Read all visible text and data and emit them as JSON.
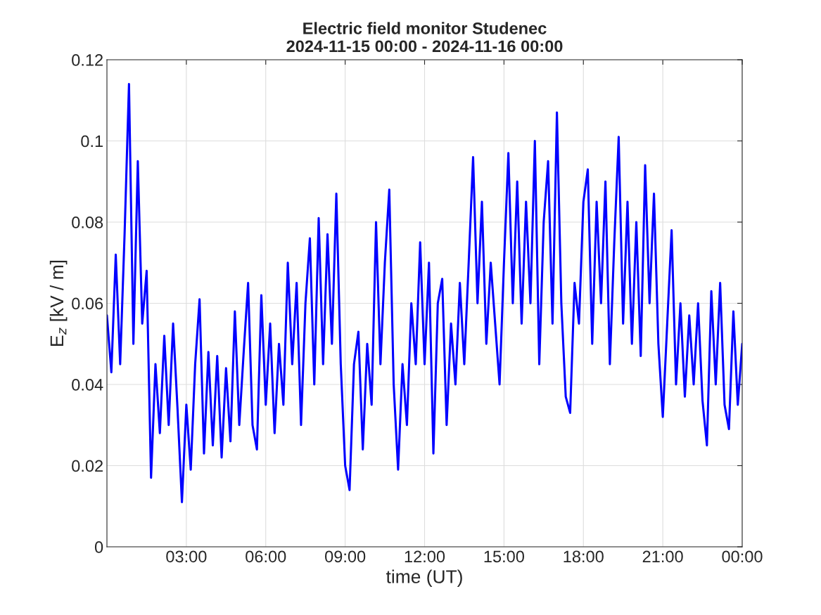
{
  "chart_data": {
    "type": "line",
    "title": "Electric field monitor Studenec\n2024-11-15 00:00 - 2024-11-16 00:00",
    "xlabel": "time (UT)",
    "ylabel": "E$_{z}$ [kV / m]",
    "x": [
      "2024-11-15T00:00",
      "2024-11-15T00:10",
      "2024-11-15T00:20",
      "2024-11-15T00:30",
      "2024-11-15T00:40",
      "2024-11-15T00:50",
      "2024-11-15T01:00",
      "2024-11-15T01:10",
      "2024-11-15T01:20",
      "2024-11-15T01:30",
      "2024-11-15T01:40",
      "2024-11-15T01:50",
      "2024-11-15T02:00",
      "2024-11-15T02:10",
      "2024-11-15T02:20",
      "2024-11-15T02:30",
      "2024-11-15T02:40",
      "2024-11-15T02:50",
      "2024-11-15T03:00",
      "2024-11-15T03:10",
      "2024-11-15T03:20",
      "2024-11-15T03:30",
      "2024-11-15T03:40",
      "2024-11-15T03:50",
      "2024-11-15T04:00",
      "2024-11-15T04:10",
      "2024-11-15T04:20",
      "2024-11-15T04:30",
      "2024-11-15T04:40",
      "2024-11-15T04:50",
      "2024-11-15T05:00",
      "2024-11-15T05:10",
      "2024-11-15T05:20",
      "2024-11-15T05:30",
      "2024-11-15T05:40",
      "2024-11-15T05:50",
      "2024-11-15T06:00",
      "2024-11-15T06:10",
      "2024-11-15T06:20",
      "2024-11-15T06:30",
      "2024-11-15T06:40",
      "2024-11-15T06:50",
      "2024-11-15T07:00",
      "2024-11-15T07:10",
      "2024-11-15T07:20",
      "2024-11-15T07:30",
      "2024-11-15T07:40",
      "2024-11-15T07:50",
      "2024-11-15T08:00",
      "2024-11-15T08:10",
      "2024-11-15T08:20",
      "2024-11-15T08:30",
      "2024-11-15T08:40",
      "2024-11-15T08:50",
      "2024-11-15T09:00",
      "2024-11-15T09:10",
      "2024-11-15T09:20",
      "2024-11-15T09:30",
      "2024-11-15T09:40",
      "2024-11-15T09:50",
      "2024-11-15T10:00",
      "2024-11-15T10:10",
      "2024-11-15T10:20",
      "2024-11-15T10:30",
      "2024-11-15T10:40",
      "2024-11-15T10:50",
      "2024-11-15T11:00",
      "2024-11-15T11:10",
      "2024-11-15T11:20",
      "2024-11-15T11:30",
      "2024-11-15T11:40",
      "2024-11-15T11:50",
      "2024-11-15T12:00",
      "2024-11-15T12:10",
      "2024-11-15T12:20",
      "2024-11-15T12:30",
      "2024-11-15T12:40",
      "2024-11-15T12:50",
      "2024-11-15T13:00",
      "2024-11-15T13:10",
      "2024-11-15T13:20",
      "2024-11-15T13:30",
      "2024-11-15T13:40",
      "2024-11-15T13:50",
      "2024-11-15T14:00",
      "2024-11-15T14:10",
      "2024-11-15T14:20",
      "2024-11-15T14:30",
      "2024-11-15T14:40",
      "2024-11-15T14:50",
      "2024-11-15T15:00",
      "2024-11-15T15:10",
      "2024-11-15T15:20",
      "2024-11-15T15:30",
      "2024-11-15T15:40",
      "2024-11-15T15:50",
      "2024-11-15T16:00",
      "2024-11-15T16:10",
      "2024-11-15T16:20",
      "2024-11-15T16:30",
      "2024-11-15T16:40",
      "2024-11-15T16:50",
      "2024-11-15T17:00",
      "2024-11-15T17:10",
      "2024-11-15T17:20",
      "2024-11-15T17:30",
      "2024-11-15T17:40",
      "2024-11-15T17:50",
      "2024-11-15T18:00",
      "2024-11-15T18:10",
      "2024-11-15T18:20",
      "2024-11-15T18:30",
      "2024-11-15T18:40",
      "2024-11-15T18:50",
      "2024-11-15T19:00",
      "2024-11-15T19:10",
      "2024-11-15T19:20",
      "2024-11-15T19:30",
      "2024-11-15T19:40",
      "2024-11-15T19:50",
      "2024-11-15T20:00",
      "2024-11-15T20:10",
      "2024-11-15T20:20",
      "2024-11-15T20:30",
      "2024-11-15T20:40",
      "2024-11-15T20:50",
      "2024-11-15T21:00",
      "2024-11-15T21:10",
      "2024-11-15T21:20",
      "2024-11-15T21:30",
      "2024-11-15T21:40",
      "2024-11-15T21:50",
      "2024-11-15T22:00",
      "2024-11-15T22:10",
      "2024-11-15T22:20",
      "2024-11-15T22:30",
      "2024-11-15T22:40",
      "2024-11-15T22:50",
      "2024-11-15T23:00",
      "2024-11-15T23:10",
      "2024-11-15T23:20",
      "2024-11-15T23:30",
      "2024-11-15T23:40",
      "2024-11-15T23:50",
      "2024-11-16T00:00"
    ],
    "series": [
      {
        "color": "#0000ff",
        "values": [
          0.057,
          0.043,
          0.072,
          0.045,
          0.077,
          0.114,
          0.05,
          0.095,
          0.055,
          0.068,
          0.017,
          0.045,
          0.028,
          0.052,
          0.03,
          0.055,
          0.034,
          0.011,
          0.035,
          0.019,
          0.045,
          0.061,
          0.023,
          0.048,
          0.025,
          0.047,
          0.022,
          0.044,
          0.026,
          0.058,
          0.03,
          0.048,
          0.065,
          0.03,
          0.024,
          0.062,
          0.035,
          0.055,
          0.028,
          0.05,
          0.035,
          0.07,
          0.045,
          0.065,
          0.03,
          0.06,
          0.076,
          0.04,
          0.081,
          0.045,
          0.077,
          0.05,
          0.087,
          0.045,
          0.02,
          0.014,
          0.045,
          0.053,
          0.024,
          0.05,
          0.035,
          0.08,
          0.045,
          0.07,
          0.088,
          0.04,
          0.019,
          0.045,
          0.03,
          0.06,
          0.045,
          0.075,
          0.045,
          0.07,
          0.023,
          0.06,
          0.066,
          0.03,
          0.055,
          0.04,
          0.065,
          0.045,
          0.07,
          0.096,
          0.06,
          0.085,
          0.05,
          0.07,
          0.055,
          0.04,
          0.07,
          0.097,
          0.06,
          0.09,
          0.055,
          0.085,
          0.06,
          0.1,
          0.045,
          0.08,
          0.095,
          0.055,
          0.107,
          0.06,
          0.037,
          0.033,
          0.065,
          0.055,
          0.085,
          0.093,
          0.05,
          0.085,
          0.06,
          0.09,
          0.045,
          0.075,
          0.101,
          0.055,
          0.085,
          0.05,
          0.08,
          0.047,
          0.094,
          0.06,
          0.087,
          0.05,
          0.032,
          0.055,
          0.078,
          0.04,
          0.06,
          0.037,
          0.057,
          0.04,
          0.06,
          0.036,
          0.025,
          0.063,
          0.04,
          0.065,
          0.035,
          0.029,
          0.058,
          0.035,
          0.05
        ]
      }
    ],
    "xlim": [
      "2024-11-15T00:00",
      "2024-11-16T00:00"
    ],
    "xticks": [
      {
        "value": "2024-11-15T03:00",
        "label": "03:00"
      },
      {
        "value": "2024-11-15T06:00",
        "label": "06:00"
      },
      {
        "value": "2024-11-15T09:00",
        "label": "09:00"
      },
      {
        "value": "2024-11-15T12:00",
        "label": "12:00"
      },
      {
        "value": "2024-11-15T15:00",
        "label": "15:00"
      },
      {
        "value": "2024-11-15T18:00",
        "label": "18:00"
      },
      {
        "value": "2024-11-15T21:00",
        "label": "21:00"
      },
      {
        "value": "2024-11-16T00:00",
        "label": "00:00"
      }
    ],
    "ylim": [
      0,
      0.12
    ],
    "yticks": [
      0,
      0.02,
      0.04,
      0.06,
      0.08,
      0.1,
      0.12
    ],
    "grid": true,
    "line_style": "solid",
    "marker": "none"
  }
}
